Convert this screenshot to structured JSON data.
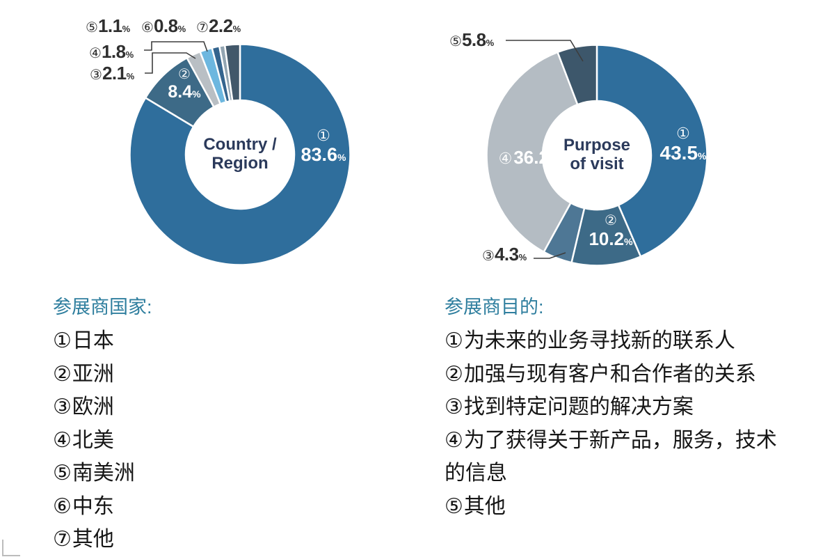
{
  "units": {
    "percent_sign": "%"
  },
  "palette": {
    "primary_blue": "#2f6e9c",
    "dark_desat_blue": "#3d6a87",
    "light_gray": "#b9bfc4",
    "sky_blue": "#6db7df",
    "navy_blue": "#34648e",
    "gray_blue": "#93a5b2",
    "dark_slate": "#42586a",
    "center_text": "#2b3a5b",
    "legend_title_teal": "#2e7e9e",
    "legend_text": "#161616"
  },
  "chart_data": [
    {
      "type": "pie",
      "donut": true,
      "title": "Country / Region",
      "center_label_lines": [
        "Country /",
        "Region"
      ],
      "legend_title": "参展商国家:",
      "legend_position": "below",
      "start_angle_deg": 0,
      "direction": "clockwise",
      "segments": [
        {
          "num": "①",
          "label": "日本",
          "value": 83.6,
          "color": "#2f6e9c"
        },
        {
          "num": "②",
          "label": "亚洲",
          "value": 8.4,
          "color": "#3d6a87"
        },
        {
          "num": "③",
          "label": "欧洲",
          "value": 2.1,
          "color": "#b9bfc4"
        },
        {
          "num": "④",
          "label": "北美",
          "value": 1.8,
          "color": "#6db7df"
        },
        {
          "num": "⑤",
          "label": "南美洲",
          "value": 1.1,
          "color": "#34648e"
        },
        {
          "num": "⑥",
          "label": "中东",
          "value": 0.8,
          "color": "#93a5b2"
        },
        {
          "num": "⑦",
          "label": "其他",
          "value": 2.2,
          "color": "#42586a"
        }
      ]
    },
    {
      "type": "pie",
      "donut": true,
      "title": "Purpose of visit",
      "center_label_lines": [
        "Purpose",
        "of visit"
      ],
      "legend_title": "参展商目的:",
      "legend_position": "below",
      "start_angle_deg": 0,
      "direction": "clockwise",
      "segments": [
        {
          "num": "①",
          "label": "为未来的业务寻找新的联系人",
          "value": 43.5,
          "color": "#2f6e9c"
        },
        {
          "num": "②",
          "label": "加强与现有客户和合作者的关系",
          "value": 10.2,
          "color": "#3d6a87"
        },
        {
          "num": "③",
          "label": "找到特定问题的解决方案",
          "value": 4.3,
          "color": "#4e7795"
        },
        {
          "num": "④",
          "label": "为了获得关于新产品，服务，技术的信息",
          "value": 36.2,
          "color": "#b4bcc3"
        },
        {
          "num": "⑤",
          "label": "其他",
          "value": 5.8,
          "color": "#3d576b"
        }
      ]
    }
  ]
}
